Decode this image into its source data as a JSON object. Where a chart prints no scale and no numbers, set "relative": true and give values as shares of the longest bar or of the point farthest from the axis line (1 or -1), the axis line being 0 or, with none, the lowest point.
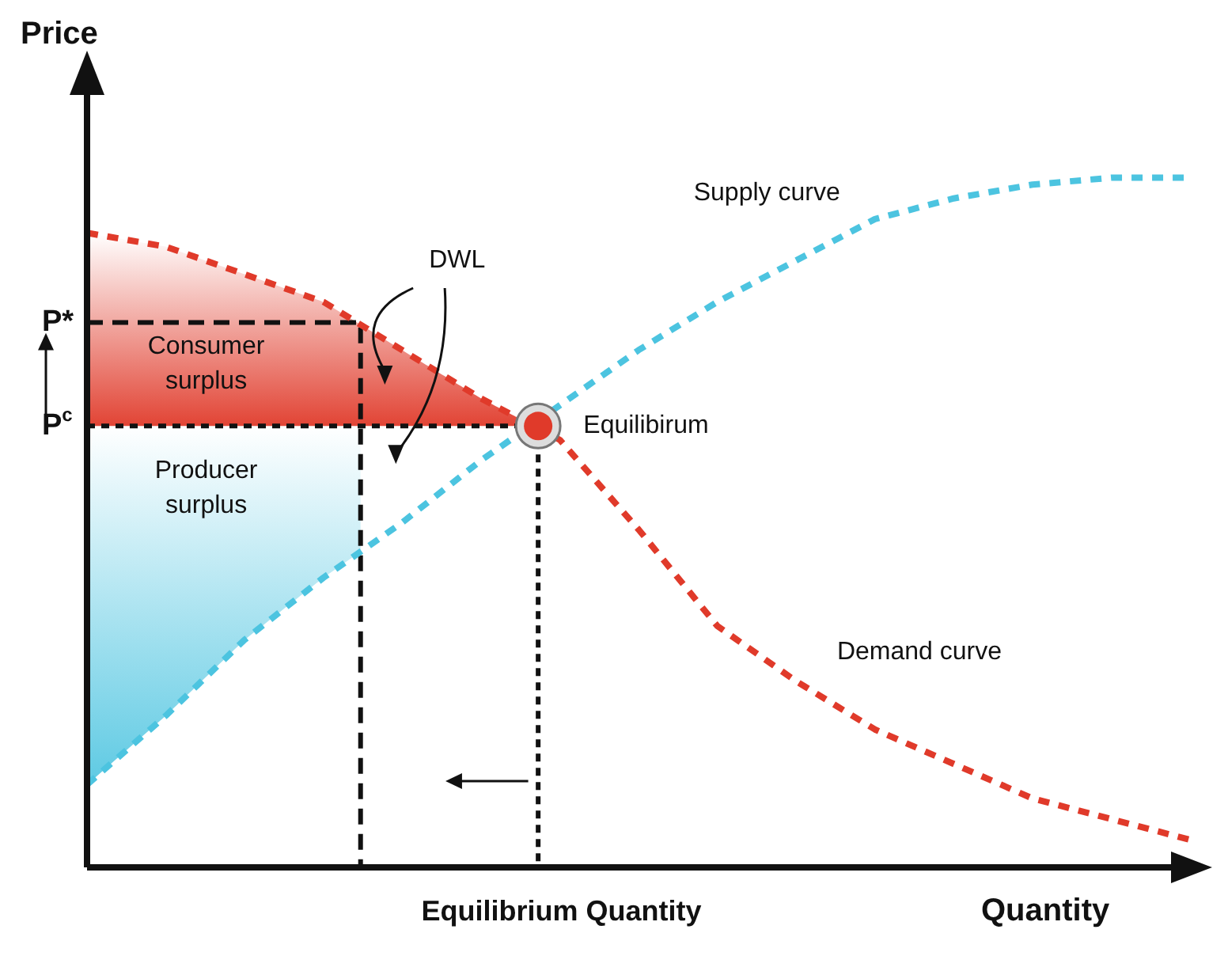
{
  "chart_data": {
    "type": "line",
    "relative": true,
    "xlabel": "Quantity",
    "ylabel": "Price",
    "categories": [
      null,
      null,
      null,
      null,
      null,
      null,
      null,
      null,
      null,
      null,
      null,
      null,
      null,
      null,
      null
    ],
    "series": [
      {
        "name": "Demand curve",
        "color": "#e03a2a",
        "values": [
          0.92,
          0.9,
          0.86,
          0.82,
          0.75,
          0.68,
          0.62,
          0.49,
          0.35,
          0.27,
          0.2,
          0.15,
          0.1,
          0.07,
          0.04
        ]
      },
      {
        "name": "Supply curve",
        "color": "#4cc4e0",
        "values": [
          0.12,
          0.22,
          0.33,
          0.42,
          0.5,
          0.59,
          0.67,
          0.75,
          0.82,
          0.88,
          0.94,
          0.97,
          0.99,
          1.0,
          1.0
        ]
      }
    ],
    "annotations": [
      "P*",
      "P$^{c}$",
      "Consumer surplus",
      "Producer surplus",
      "DWL",
      "Equilibirum",
      "Equilibrium Quantity"
    ],
    "line_style": "dashed",
    "marker": "none"
  }
}
